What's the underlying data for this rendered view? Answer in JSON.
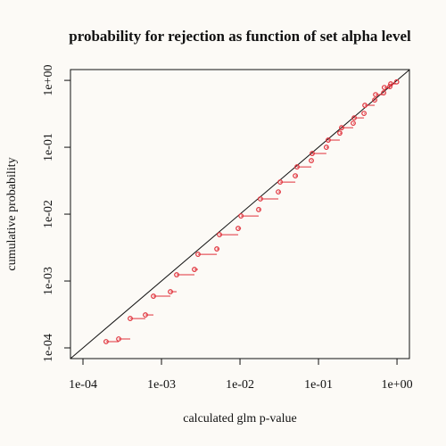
{
  "chart_data": {
    "type": "scatter",
    "title": "probability for rejection as function of set alpha level",
    "x_label": "calculated glm p-value",
    "y_label": "cumulative probability",
    "log_x": true,
    "log_y": true,
    "color": "#e0303a",
    "x": [
      0.000197,
      0.000285,
      0.0004,
      0.000624,
      0.00079,
      0.0013,
      0.00156,
      0.00263,
      0.00292,
      0.00507,
      0.00548,
      0.00949,
      0.0103,
      0.0173,
      0.0182,
      0.0308,
      0.0325,
      0.0507,
      0.0533,
      0.0811,
      0.0832,
      0.126,
      0.133,
      0.187,
      0.197,
      0.277,
      0.285,
      0.38,
      0.39,
      0.52,
      0.534,
      0.676,
      0.69,
      0.811,
      0.832,
      0.99
    ],
    "values": [
      0.000124,
      0.000136,
      0.000275,
      0.000311,
      0.000593,
      0.000692,
      0.00124,
      0.00149,
      0.00251,
      0.00302,
      0.00493,
      0.00612,
      0.0094,
      0.0117,
      0.0169,
      0.0215,
      0.0302,
      0.0374,
      0.0509,
      0.0631,
      0.0807,
      0.1,
      0.128,
      0.163,
      0.196,
      0.229,
      0.275,
      0.321,
      0.424,
      0.509,
      0.612,
      0.651,
      0.782,
      0.807,
      0.885,
      0.95
    ],
    "xlim": [
      6.93e-05,
      1.44
    ],
    "ylim": [
      6.92e-05,
      1.45
    ],
    "xticks": [
      {
        "value": 0.0001,
        "label": "1e-04"
      },
      {
        "value": 0.001,
        "label": "1e-03"
      },
      {
        "value": 0.01,
        "label": "1e-02"
      },
      {
        "value": 0.1,
        "label": "1e-01"
      },
      {
        "value": 1,
        "label": "1e+00"
      }
    ],
    "yticks": [
      {
        "value": 0.0001,
        "label": "1e-04"
      },
      {
        "value": 0.001,
        "label": "1e-03"
      },
      {
        "value": 0.01,
        "label": "1e-02"
      },
      {
        "value": 0.1,
        "label": "1e-01"
      },
      {
        "value": 1,
        "label": "1e+00"
      }
    ]
  }
}
